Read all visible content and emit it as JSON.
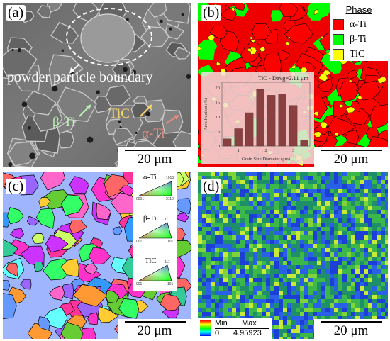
{
  "panels": {
    "a": {
      "label": "(a)",
      "scale": "20 μm",
      "annotations": {
        "boundary": "powder particle boundary",
        "beta": "β-Ti",
        "tic": "TiC",
        "alpha": "α-Ti"
      }
    },
    "b": {
      "label": "(b)",
      "scale": "20 μm",
      "legend": {
        "title": "Phase",
        "items": [
          {
            "name": "α-Ti",
            "color": "#ff0000"
          },
          {
            "name": "β-Ti",
            "color": "#00ff00"
          },
          {
            "name": "TiC",
            "color": "#ffff00"
          }
        ]
      }
    },
    "c": {
      "label": "(c)",
      "scale": "20 μm",
      "ipf": [
        {
          "name": "α-Ti",
          "corners": [
            "0001",
            "2110",
            "1010"
          ]
        },
        {
          "name": "β-Ti",
          "corners": [
            "001",
            "101",
            "111"
          ]
        },
        {
          "name": "TiC",
          "corners": [
            "001",
            "101",
            "111"
          ]
        }
      ]
    },
    "d": {
      "label": "(d)",
      "scale": "20 μm",
      "colorbar": {
        "min_label": "Min",
        "max_label": "Max",
        "min": "0",
        "max": "4.95923"
      }
    }
  },
  "chart_data": {
    "type": "bar",
    "title": "TiC - Davg=2.11 μm",
    "xlabel": "Grain Size Diameter (μm)",
    "ylabel": "Area fraction (%)",
    "x": [
      0.6,
      1.0,
      1.4,
      1.8,
      2.2,
      2.6,
      3.0,
      3.4
    ],
    "values": [
      2.5,
      6,
      11.5,
      19.5,
      17.5,
      18,
      14,
      2
    ],
    "xticks": [
      "1",
      "2",
      "3"
    ],
    "yticks": [
      "0",
      "5",
      "10",
      "15",
      "20"
    ],
    "xlim": [
      0.4,
      3.6
    ],
    "ylim": [
      0,
      22
    ]
  }
}
